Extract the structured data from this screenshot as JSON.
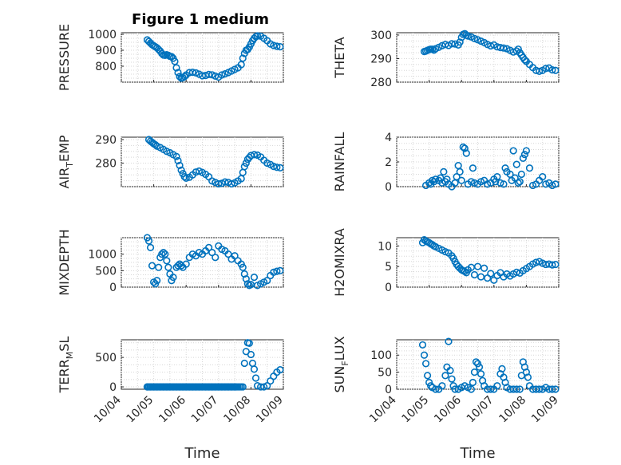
{
  "figure_title": "Figure 1 medium",
  "colors": {
    "series": "#0072BD",
    "axis": "#262626",
    "grid": "#d7d7d7"
  },
  "chart_data": [
    {
      "type": "scatter",
      "name": "pressure",
      "ylabel": "PRESSURE",
      "title": "Figure 1 medium",
      "ylim": [
        700,
        1010
      ],
      "yticks": [
        800,
        900,
        1000
      ],
      "xlim": [
        0,
        5
      ],
      "x_is_days_from": "10/04",
      "xtick_labels": [],
      "xlabel": "",
      "x": [
        0.8,
        0.85,
        0.9,
        0.95,
        1.0,
        1.05,
        1.1,
        1.15,
        1.2,
        1.25,
        1.3,
        1.35,
        1.4,
        1.45,
        1.5,
        1.55,
        1.6,
        1.65,
        1.7,
        1.75,
        1.8,
        1.85,
        1.9,
        1.95,
        2.0,
        2.1,
        2.2,
        2.3,
        2.4,
        2.5,
        2.6,
        2.7,
        2.8,
        2.9,
        3.0,
        3.1,
        3.2,
        3.3,
        3.4,
        3.5,
        3.6,
        3.7,
        3.75,
        3.8,
        3.85,
        3.9,
        3.95,
        4.0,
        4.05,
        4.1,
        4.15,
        4.2,
        4.3,
        4.4,
        4.5,
        4.6,
        4.7,
        4.8,
        4.9
      ],
      "y": [
        965,
        955,
        945,
        935,
        928,
        922,
        915,
        905,
        895,
        880,
        870,
        868,
        872,
        868,
        862,
        860,
        850,
        830,
        790,
        760,
        735,
        725,
        728,
        735,
        745,
        760,
        762,
        758,
        750,
        740,
        742,
        748,
        746,
        738,
        732,
        745,
        752,
        760,
        770,
        780,
        790,
        810,
        850,
        880,
        900,
        905,
        920,
        940,
        960,
        975,
        985,
        990,
        988,
        975,
        960,
        940,
        930,
        925,
        922
      ]
    },
    {
      "type": "scatter",
      "name": "theta",
      "ylabel": "THETA",
      "ylim": [
        280,
        301
      ],
      "yticks": [
        280,
        290,
        300
      ],
      "xlim": [
        0,
        5
      ],
      "xtick_labels": [],
      "xlabel": "",
      "x": [
        0.85,
        0.9,
        0.95,
        1.0,
        1.05,
        1.1,
        1.15,
        1.2,
        1.3,
        1.4,
        1.5,
        1.6,
        1.7,
        1.8,
        1.9,
        1.95,
        2.0,
        2.05,
        2.1,
        2.15,
        2.2,
        2.3,
        2.4,
        2.5,
        2.6,
        2.7,
        2.8,
        2.9,
        3.0,
        3.1,
        3.2,
        3.3,
        3.4,
        3.5,
        3.6,
        3.7,
        3.75,
        3.8,
        3.85,
        3.9,
        3.95,
        4.0,
        4.1,
        4.2,
        4.3,
        4.4,
        4.5,
        4.6,
        4.7,
        4.8,
        4.9
      ],
      "y": [
        293,
        293.2,
        293.5,
        293.8,
        294,
        294,
        293.6,
        294.2,
        294.8,
        295.5,
        296,
        295.6,
        296.3,
        296.2,
        295.8,
        297,
        299,
        300.3,
        300.6,
        300,
        299.6,
        299.2,
        298.5,
        298,
        297.4,
        296.8,
        296,
        295.4,
        295.8,
        295,
        294.7,
        294.5,
        294.2,
        293.5,
        292.8,
        293.2,
        294,
        292.5,
        291.5,
        290.5,
        289.5,
        288.8,
        287.5,
        286.2,
        285,
        284.6,
        285,
        285.8,
        286,
        285.2,
        285
      ]
    },
    {
      "type": "scatter",
      "name": "air_temp",
      "ylabel": "AIR_TEMP",
      "ylim": [
        270,
        291
      ],
      "yticks": [
        280,
        290
      ],
      "xlim": [
        0,
        5
      ],
      "xtick_labels": [],
      "xlabel": "",
      "x": [
        0.85,
        0.9,
        0.95,
        1.0,
        1.05,
        1.1,
        1.2,
        1.3,
        1.4,
        1.5,
        1.6,
        1.7,
        1.75,
        1.8,
        1.85,
        1.9,
        1.95,
        2.0,
        2.1,
        2.2,
        2.3,
        2.4,
        2.5,
        2.6,
        2.7,
        2.8,
        2.9,
        3.0,
        3.1,
        3.2,
        3.3,
        3.4,
        3.5,
        3.6,
        3.7,
        3.75,
        3.8,
        3.85,
        3.9,
        3.95,
        4.0,
        4.1,
        4.2,
        4.3,
        4.4,
        4.5,
        4.6,
        4.7,
        4.8,
        4.9
      ],
      "y": [
        290,
        289.3,
        288.8,
        288.2,
        287.8,
        287.2,
        286.6,
        285.8,
        285,
        284.4,
        283.6,
        282.8,
        281,
        279,
        277,
        275.5,
        274.2,
        273.6,
        274,
        275,
        276.2,
        276.6,
        276,
        275.2,
        274.2,
        272.4,
        271.8,
        271.2,
        271.4,
        272,
        271.8,
        271.2,
        271.6,
        272.4,
        273.4,
        276,
        278.5,
        280,
        281.6,
        282.4,
        283.2,
        283.6,
        283.4,
        282.6,
        281.2,
        280,
        279.4,
        278.6,
        278.2,
        278
      ]
    },
    {
      "type": "scatter",
      "name": "rainfall",
      "ylabel": "RAINFALL",
      "ylim": [
        0,
        4
      ],
      "yticks": [
        0,
        2,
        4
      ],
      "xlim": [
        0,
        5
      ],
      "xtick_labels": [],
      "xlabel": "",
      "x": [
        0.9,
        1.0,
        1.05,
        1.1,
        1.15,
        1.2,
        1.3,
        1.35,
        1.4,
        1.45,
        1.5,
        1.55,
        1.6,
        1.7,
        1.8,
        1.85,
        1.9,
        1.95,
        2.0,
        2.05,
        2.1,
        2.15,
        2.2,
        2.3,
        2.35,
        2.4,
        2.5,
        2.6,
        2.7,
        2.8,
        2.9,
        3.0,
        3.05,
        3.1,
        3.2,
        3.3,
        3.35,
        3.4,
        3.5,
        3.55,
        3.6,
        3.65,
        3.7,
        3.75,
        3.8,
        3.85,
        3.9,
        3.95,
        4.0,
        4.1,
        4.2,
        4.3,
        4.4,
        4.5,
        4.6,
        4.7,
        4.8,
        4.9
      ],
      "y": [
        0.1,
        0.3,
        0.2,
        0.5,
        0.4,
        0.6,
        0.5,
        0.7,
        0.3,
        1.2,
        0.4,
        0.6,
        0.2,
        0,
        0.3,
        0.8,
        1.7,
        1.2,
        0.5,
        3.2,
        3.1,
        2.7,
        0.2,
        0.4,
        1.5,
        0.3,
        0.2,
        0.4,
        0.5,
        0.2,
        0.3,
        0.6,
        0.4,
        0.8,
        0.3,
        0.2,
        1.5,
        1.2,
        1,
        0.5,
        2.9,
        0.7,
        1.8,
        0.3,
        0.4,
        1.0,
        2.3,
        2.6,
        2.9,
        1.5,
        0.1,
        0.2,
        0.5,
        0.8,
        0.2,
        0.3,
        0.1,
        0.2
      ]
    },
    {
      "type": "scatter",
      "name": "mixdepth",
      "ylabel": "MIXDEPTH",
      "ylim": [
        0,
        1500
      ],
      "yticks": [
        0,
        500,
        1000
      ],
      "xlim": [
        0,
        5
      ],
      "xtick_labels": [],
      "xlabel": "",
      "x": [
        0.8,
        0.85,
        0.9,
        0.95,
        1.0,
        1.05,
        1.1,
        1.15,
        1.2,
        1.25,
        1.3,
        1.35,
        1.4,
        1.45,
        1.5,
        1.55,
        1.6,
        1.7,
        1.75,
        1.8,
        1.85,
        1.9,
        2.0,
        2.1,
        2.2,
        2.3,
        2.4,
        2.5,
        2.6,
        2.7,
        2.8,
        2.9,
        3.0,
        3.1,
        3.2,
        3.3,
        3.4,
        3.5,
        3.6,
        3.7,
        3.75,
        3.8,
        3.85,
        3.9,
        3.95,
        4.0,
        4.1,
        4.2,
        4.3,
        4.4,
        4.5,
        4.6,
        4.7,
        4.8,
        4.9
      ],
      "y": [
        1500,
        1400,
        1200,
        650,
        150,
        100,
        200,
        600,
        900,
        1000,
        1050,
        1000,
        800,
        600,
        400,
        200,
        300,
        600,
        650,
        700,
        650,
        600,
        700,
        900,
        1000,
        950,
        1050,
        1000,
        1100,
        1200,
        1050,
        900,
        1250,
        1150,
        1100,
        1000,
        850,
        950,
        800,
        700,
        600,
        400,
        250,
        100,
        50,
        80,
        300,
        50,
        100,
        150,
        200,
        350,
        450,
        480,
        500
      ]
    },
    {
      "type": "scatter",
      "name": "h2omixra",
      "ylabel": "H2OMIXRA",
      "ylim": [
        0,
        12
      ],
      "yticks": [
        0,
        5,
        10
      ],
      "xlim": [
        0,
        5
      ],
      "xtick_labels": [],
      "xlabel": "",
      "x": [
        0.8,
        0.85,
        0.9,
        0.95,
        1.0,
        1.05,
        1.1,
        1.15,
        1.2,
        1.3,
        1.4,
        1.5,
        1.6,
        1.7,
        1.75,
        1.8,
        1.85,
        1.9,
        1.95,
        2.0,
        2.05,
        2.1,
        2.15,
        2.2,
        2.3,
        2.4,
        2.5,
        2.6,
        2.7,
        2.8,
        2.9,
        3.0,
        3.1,
        3.2,
        3.3,
        3.4,
        3.5,
        3.6,
        3.7,
        3.8,
        3.9,
        4.0,
        4.1,
        4.2,
        4.3,
        4.4,
        4.5,
        4.6,
        4.7,
        4.8,
        4.9
      ],
      "y": [
        10.8,
        11.5,
        11.2,
        11,
        10.8,
        10.5,
        10.3,
        10,
        9.8,
        9.4,
        9,
        8.6,
        8.3,
        7.6,
        7,
        6.2,
        5.5,
        5,
        4.6,
        4.2,
        4,
        3.8,
        3.5,
        4.2,
        4.8,
        3,
        5,
        2.5,
        4.6,
        2.2,
        3.3,
        1.7,
        2.8,
        3.5,
        2.5,
        3.2,
        2.7,
        3.2,
        3.6,
        3.4,
        4,
        4.5,
        5,
        5.6,
        6,
        6.2,
        5.8,
        5.5,
        5.6,
        5.4,
        5.5
      ]
    },
    {
      "type": "scatter",
      "name": "terr_msl",
      "ylabel": "TERR_MSL",
      "ylim": [
        -40,
        800
      ],
      "yticks": [
        0,
        500
      ],
      "xlim": [
        0,
        5
      ],
      "xtick_labels": [
        "10/04",
        "10/05",
        "10/06",
        "10/07",
        "10/08",
        "10/09"
      ],
      "xlabel": "Time",
      "x": [
        0.8,
        0.9,
        1.0,
        1.1,
        1.2,
        1.3,
        1.4,
        1.5,
        1.6,
        1.7,
        1.8,
        1.9,
        2.0,
        2.1,
        2.2,
        2.3,
        2.4,
        2.5,
        2.6,
        2.7,
        2.8,
        2.9,
        3.0,
        3.1,
        3.2,
        3.3,
        3.4,
        3.5,
        3.55,
        3.6,
        3.65,
        3.7,
        3.75,
        3.8,
        3.85,
        3.9,
        3.95,
        4.0,
        4.05,
        4.1,
        4.15,
        4.2,
        4.3,
        4.4,
        4.5,
        4.6,
        4.7,
        4.8,
        4.9
      ],
      "y": [
        0,
        0,
        0,
        0,
        0,
        0,
        0,
        0,
        0,
        0,
        0,
        0,
        0,
        0,
        0,
        0,
        0,
        0,
        0,
        0,
        0,
        0,
        0,
        0,
        0,
        0,
        0,
        0,
        0,
        0,
        0,
        0,
        0,
        400,
        600,
        750,
        740,
        550,
        400,
        300,
        150,
        20,
        0,
        0,
        20,
        100,
        180,
        250,
        290
      ]
    },
    {
      "type": "scatter",
      "name": "sun_flux",
      "ylabel": "SUN_FLUX",
      "ylim": [
        0,
        145
      ],
      "yticks": [
        0,
        50,
        100
      ],
      "xlim": [
        0,
        5
      ],
      "xtick_labels": [
        "10/04",
        "10/05",
        "10/06",
        "10/07",
        "10/08",
        "10/09"
      ],
      "xlabel": "Time",
      "x": [
        0.8,
        0.85,
        0.9,
        0.95,
        1.0,
        1.05,
        1.1,
        1.2,
        1.3,
        1.4,
        1.5,
        1.55,
        1.6,
        1.65,
        1.7,
        1.75,
        1.8,
        1.9,
        2.0,
        2.1,
        2.2,
        2.3,
        2.35,
        2.4,
        2.45,
        2.5,
        2.55,
        2.6,
        2.65,
        2.7,
        2.8,
        2.9,
        3.0,
        3.1,
        3.2,
        3.25,
        3.3,
        3.35,
        3.4,
        3.5,
        3.6,
        3.7,
        3.8,
        3.85,
        3.9,
        3.95,
        4.0,
        4.05,
        4.1,
        4.2,
        4.3,
        4.4,
        4.5,
        4.6,
        4.7,
        4.8,
        4.9
      ],
      "y": [
        130,
        100,
        75,
        40,
        20,
        10,
        5,
        0,
        0,
        10,
        40,
        65,
        140,
        55,
        30,
        10,
        0,
        0,
        5,
        10,
        5,
        0,
        20,
        50,
        80,
        75,
        65,
        45,
        25,
        10,
        0,
        0,
        0,
        10,
        45,
        60,
        35,
        20,
        5,
        0,
        0,
        0,
        0,
        40,
        80,
        65,
        50,
        35,
        10,
        0,
        0,
        0,
        0,
        5,
        0,
        0,
        0
      ]
    }
  ]
}
